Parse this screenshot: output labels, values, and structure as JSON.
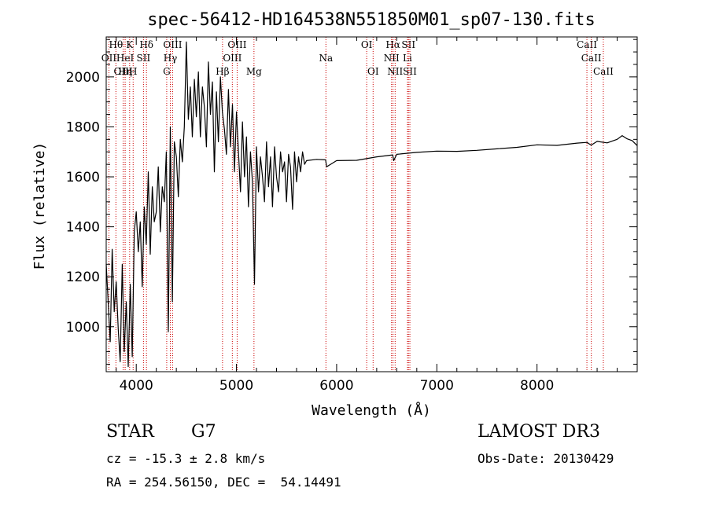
{
  "chart_data": {
    "type": "line",
    "title": "spec-56412-HD164538N551850M01_sp07-130.fits",
    "xlabel": "Wavelength (Å)",
    "ylabel": "Flux (relative)",
    "xlim": [
      3700,
      9000
    ],
    "ylim": [
      820,
      2160
    ],
    "xticks": [
      4000,
      5000,
      6000,
      7000,
      8000
    ],
    "yticks": [
      1000,
      1200,
      1400,
      1600,
      1800,
      2000
    ],
    "grid": false,
    "series": [
      {
        "name": "flux",
        "x": [
          3700,
          3720,
          3740,
          3760,
          3780,
          3800,
          3820,
          3840,
          3860,
          3880,
          3900,
          3920,
          3940,
          3960,
          3980,
          4000,
          4020,
          4040,
          4060,
          4080,
          4100,
          4120,
          4140,
          4160,
          4180,
          4200,
          4220,
          4240,
          4260,
          4280,
          4300,
          4320,
          4340,
          4360,
          4380,
          4400,
          4420,
          4440,
          4460,
          4480,
          4500,
          4520,
          4540,
          4560,
          4580,
          4600,
          4620,
          4640,
          4660,
          4680,
          4700,
          4720,
          4740,
          4760,
          4780,
          4800,
          4820,
          4840,
          4860,
          4880,
          4900,
          4920,
          4940,
          4960,
          4980,
          5000,
          5020,
          5040,
          5060,
          5080,
          5100,
          5120,
          5140,
          5160,
          5180,
          5200,
          5220,
          5240,
          5260,
          5280,
          5300,
          5320,
          5340,
          5360,
          5380,
          5400,
          5420,
          5440,
          5460,
          5480,
          5500,
          5520,
          5540,
          5560,
          5580,
          5600,
          5620,
          5640,
          5660,
          5680,
          5700,
          5800,
          5890,
          5900,
          6000,
          6200,
          6400,
          6560,
          6570,
          6600,
          6800,
          7000,
          7200,
          7400,
          7600,
          7800,
          8000,
          8200,
          8400,
          8500,
          8540,
          8600,
          8700,
          8800,
          8850,
          8900,
          8950,
          9000
        ],
        "y": [
          1250,
          1100,
          940,
          1310,
          1060,
          1180,
          990,
          860,
          1250,
          900,
          1100,
          840,
          1170,
          880,
          1380,
          1460,
          1300,
          1420,
          1160,
          1480,
          1330,
          1620,
          1290,
          1560,
          1420,
          1460,
          1640,
          1380,
          1560,
          1500,
          1700,
          980,
          1800,
          1100,
          1740,
          1680,
          1520,
          1750,
          1660,
          1800,
          2140,
          1830,
          1960,
          1760,
          1990,
          1840,
          2020,
          1760,
          1960,
          1880,
          1720,
          2060,
          1850,
          1980,
          1620,
          1940,
          1740,
          2000,
          1860,
          1790,
          1690,
          1950,
          1720,
          1890,
          1620,
          1860,
          1700,
          1540,
          1820,
          1600,
          1760,
          1480,
          1700,
          1580,
          1170,
          1720,
          1540,
          1680,
          1600,
          1500,
          1740,
          1560,
          1680,
          1480,
          1720,
          1600,
          1540,
          1700,
          1620,
          1660,
          1500,
          1690,
          1640,
          1470,
          1700,
          1580,
          1680,
          1620,
          1700,
          1650,
          1665,
          1670,
          1668,
          1640,
          1665,
          1666,
          1680,
          1688,
          1665,
          1690,
          1698,
          1703,
          1702,
          1706,
          1712,
          1718,
          1728,
          1726,
          1735,
          1738,
          1727,
          1742,
          1736,
          1750,
          1765,
          1752,
          1745,
          1725
        ]
      }
    ],
    "spectral_lines": [
      {
        "label": "Hθ",
        "wavelength": 3797,
        "row": 0
      },
      {
        "label": "OII",
        "wavelength": 3727,
        "row": 1
      },
      {
        "label": "OIII",
        "wavelength": 3869,
        "row": 2
      },
      {
        "label": "HeI",
        "wavelength": 3889,
        "row": 1
      },
      {
        "label": "Hη",
        "wavelength": 3889,
        "row": 2
      },
      {
        "label": "K",
        "wavelength": 3934,
        "row": 0
      },
      {
        "label": "H",
        "wavelength": 3969,
        "row": 2
      },
      {
        "label": "SII",
        "wavelength": 4072,
        "row": 1
      },
      {
        "label": "Hδ",
        "wavelength": 4102,
        "row": 0
      },
      {
        "label": "OIII",
        "wavelength": 4363,
        "row": 0
      },
      {
        "label": "Hγ",
        "wavelength": 4340,
        "row": 1
      },
      {
        "label": "G",
        "wavelength": 4304,
        "row": 2
      },
      {
        "label": "Hβ",
        "wavelength": 4861,
        "row": 2
      },
      {
        "label": "OIII",
        "wavelength": 5007,
        "row": 0
      },
      {
        "label": "OIII",
        "wavelength": 4959,
        "row": 1
      },
      {
        "label": "Mg",
        "wavelength": 5175,
        "row": 2
      },
      {
        "label": "Na",
        "wavelength": 5893,
        "row": 1
      },
      {
        "label": "OI",
        "wavelength": 6300,
        "row": 0
      },
      {
        "label": "OI",
        "wavelength": 6364,
        "row": 2
      },
      {
        "label": "Hα",
        "wavelength": 6563,
        "row": 0
      },
      {
        "label": "NII",
        "wavelength": 6548,
        "row": 1
      },
      {
        "label": "NII",
        "wavelength": 6584,
        "row": 2
      },
      {
        "label": "SII",
        "wavelength": 6717,
        "row": 0
      },
      {
        "label": "Li",
        "wavelength": 6707,
        "row": 1
      },
      {
        "label": "SII",
        "wavelength": 6731,
        "row": 2
      },
      {
        "label": "CaII",
        "wavelength": 8498,
        "row": 0
      },
      {
        "label": "CaII",
        "wavelength": 8542,
        "row": 1
      },
      {
        "label": "CaII",
        "wavelength": 8662,
        "row": 2
      }
    ]
  },
  "info": {
    "object_class": "STAR",
    "subclass": "G7",
    "survey": "LAMOST DR3",
    "cz_line": "cz = -15.3 ± 2.8 km/s",
    "obs_date_line": "Obs-Date: 20130429",
    "coord_line": "RA = 254.56150, DEC =  54.14491"
  }
}
